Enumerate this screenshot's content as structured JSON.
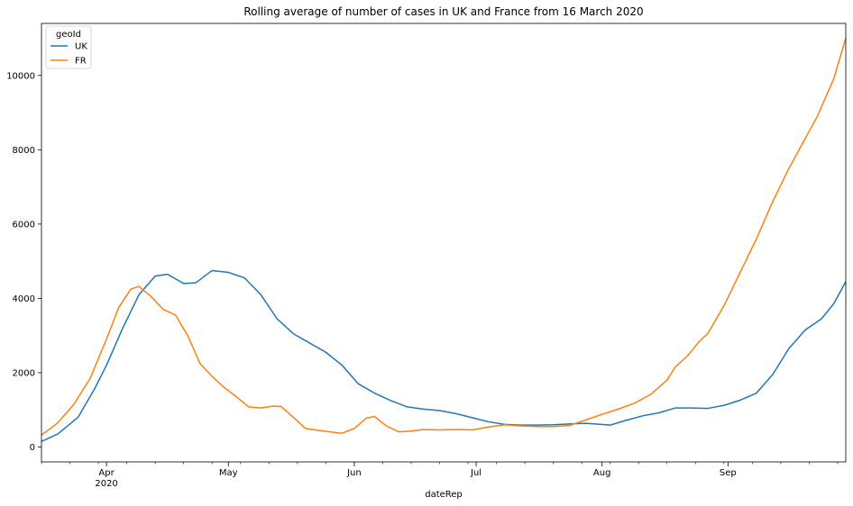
{
  "chart_data": {
    "type": "line",
    "title": "Rolling average of number of cases in UK and France  from 16 March 2020",
    "xlabel": "dateRep",
    "ylabel": "",
    "xlim": [
      "2020-03-16",
      "2020-09-30"
    ],
    "ylim": [
      -400,
      11400
    ],
    "grid": false,
    "legend": {
      "title": "geoId",
      "placement": "top-left"
    },
    "x_ticks": [
      {
        "date": "2020-04-01",
        "label": "Apr",
        "sublabel": "2020"
      },
      {
        "date": "2020-05-01",
        "label": "May",
        "sublabel": ""
      },
      {
        "date": "2020-06-01",
        "label": "Jun",
        "sublabel": ""
      },
      {
        "date": "2020-07-01",
        "label": "Jul",
        "sublabel": ""
      },
      {
        "date": "2020-08-01",
        "label": "Aug",
        "sublabel": ""
      },
      {
        "date": "2020-09-01",
        "label": "Sep",
        "sublabel": ""
      }
    ],
    "y_ticks": [
      0,
      2000,
      4000,
      6000,
      8000,
      10000
    ],
    "series": [
      {
        "name": "UK",
        "color": "#1f77b4",
        "points": [
          [
            "2020-03-16",
            150
          ],
          [
            "2020-03-20",
            350
          ],
          [
            "2020-03-25",
            800
          ],
          [
            "2020-03-29",
            1550
          ],
          [
            "2020-04-01",
            2200
          ],
          [
            "2020-04-05",
            3200
          ],
          [
            "2020-04-09",
            4100
          ],
          [
            "2020-04-13",
            4600
          ],
          [
            "2020-04-16",
            4650
          ],
          [
            "2020-04-20",
            4400
          ],
          [
            "2020-04-23",
            4420
          ],
          [
            "2020-04-27",
            4750
          ],
          [
            "2020-05-01",
            4700
          ],
          [
            "2020-05-05",
            4550
          ],
          [
            "2020-05-09",
            4100
          ],
          [
            "2020-05-13",
            3450
          ],
          [
            "2020-05-17",
            3050
          ],
          [
            "2020-05-21",
            2800
          ],
          [
            "2020-05-25",
            2550
          ],
          [
            "2020-05-29",
            2200
          ],
          [
            "2020-06-02",
            1700
          ],
          [
            "2020-06-06",
            1450
          ],
          [
            "2020-06-10",
            1250
          ],
          [
            "2020-06-14",
            1080
          ],
          [
            "2020-06-18",
            1020
          ],
          [
            "2020-06-22",
            980
          ],
          [
            "2020-06-26",
            900
          ],
          [
            "2020-06-30",
            790
          ],
          [
            "2020-07-04",
            680
          ],
          [
            "2020-07-08",
            610
          ],
          [
            "2020-07-12",
            590
          ],
          [
            "2020-07-16",
            590
          ],
          [
            "2020-07-20",
            600
          ],
          [
            "2020-07-24",
            620
          ],
          [
            "2020-07-28",
            640
          ],
          [
            "2020-08-03",
            590
          ],
          [
            "2020-08-07",
            720
          ],
          [
            "2020-08-11",
            840
          ],
          [
            "2020-08-15",
            920
          ],
          [
            "2020-08-19",
            1050
          ],
          [
            "2020-08-23",
            1050
          ],
          [
            "2020-08-27",
            1040
          ],
          [
            "2020-08-31",
            1120
          ],
          [
            "2020-09-04",
            1260
          ],
          [
            "2020-09-08",
            1450
          ],
          [
            "2020-09-12",
            1950
          ],
          [
            "2020-09-16",
            2650
          ],
          [
            "2020-09-20",
            3150
          ],
          [
            "2020-09-24",
            3450
          ],
          [
            "2020-09-27",
            3850
          ],
          [
            "2020-09-30",
            4450
          ]
        ]
      },
      {
        "name": "FR",
        "color": "#ff7f0e",
        "points": [
          [
            "2020-03-16",
            320
          ],
          [
            "2020-03-20",
            650
          ],
          [
            "2020-03-24",
            1150
          ],
          [
            "2020-03-28",
            1850
          ],
          [
            "2020-04-01",
            2900
          ],
          [
            "2020-04-04",
            3750
          ],
          [
            "2020-04-07",
            4250
          ],
          [
            "2020-04-09",
            4320
          ],
          [
            "2020-04-12",
            4050
          ],
          [
            "2020-04-15",
            3700
          ],
          [
            "2020-04-18",
            3550
          ],
          [
            "2020-04-21",
            3000
          ],
          [
            "2020-04-24",
            2250
          ],
          [
            "2020-04-27",
            1900
          ],
          [
            "2020-04-30",
            1600
          ],
          [
            "2020-05-03",
            1350
          ],
          [
            "2020-05-06",
            1080
          ],
          [
            "2020-05-09",
            1050
          ],
          [
            "2020-05-12",
            1100
          ],
          [
            "2020-05-14",
            1090
          ],
          [
            "2020-05-17",
            800
          ],
          [
            "2020-05-20",
            500
          ],
          [
            "2020-05-23",
            450
          ],
          [
            "2020-05-26",
            410
          ],
          [
            "2020-05-29",
            370
          ],
          [
            "2020-06-01",
            500
          ],
          [
            "2020-06-04",
            780
          ],
          [
            "2020-06-06",
            820
          ],
          [
            "2020-06-09",
            560
          ],
          [
            "2020-06-12",
            410
          ],
          [
            "2020-06-15",
            430
          ],
          [
            "2020-06-18",
            470
          ],
          [
            "2020-06-22",
            460
          ],
          [
            "2020-06-26",
            470
          ],
          [
            "2020-06-30",
            460
          ],
          [
            "2020-07-04",
            540
          ],
          [
            "2020-07-08",
            600
          ],
          [
            "2020-07-12",
            570
          ],
          [
            "2020-07-16",
            550
          ],
          [
            "2020-07-20",
            550
          ],
          [
            "2020-07-24",
            580
          ],
          [
            "2020-07-28",
            730
          ],
          [
            "2020-08-01",
            880
          ],
          [
            "2020-08-05",
            1020
          ],
          [
            "2020-08-09",
            1180
          ],
          [
            "2020-08-13",
            1420
          ],
          [
            "2020-08-17",
            1800
          ],
          [
            "2020-08-19",
            2150
          ],
          [
            "2020-08-22",
            2450
          ],
          [
            "2020-08-25",
            2850
          ],
          [
            "2020-08-27",
            3050
          ],
          [
            "2020-08-31",
            3800
          ],
          [
            "2020-09-04",
            4700
          ],
          [
            "2020-09-08",
            5600
          ],
          [
            "2020-09-12",
            6600
          ],
          [
            "2020-09-16",
            7500
          ],
          [
            "2020-09-20",
            8300
          ],
          [
            "2020-09-23",
            8900
          ],
          [
            "2020-09-27",
            9900
          ],
          [
            "2020-09-30",
            11000
          ]
        ]
      }
    ]
  }
}
